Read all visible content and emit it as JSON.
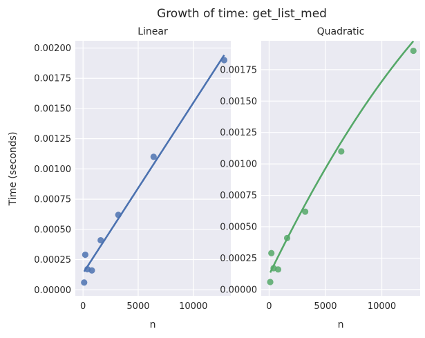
{
  "chart_data": {
    "suptitle": "Growth of time: get_list_med",
    "ylabel": "Time (seconds)",
    "panels": [
      {
        "type": "scatter",
        "title": "Linear",
        "xlabel": "n",
        "xlim": [
          -700,
          13400
        ],
        "ylim": [
          -5e-05,
          0.00206
        ],
        "xticks": [
          0,
          5000,
          10000
        ],
        "xtick_labels": [
          "0",
          "5000",
          "10000"
        ],
        "yticks": [
          0,
          0.00025,
          0.0005,
          0.00075,
          0.001,
          0.00125,
          0.0015,
          0.00175,
          0.002
        ],
        "ytick_labels": [
          "0.00000",
          "0.00025",
          "0.00050",
          "0.00075",
          "0.00100",
          "0.00125",
          "0.00150",
          "0.00175",
          "0.00200"
        ],
        "color": "#4c72b0",
        "x": [
          100,
          200,
          400,
          800,
          1600,
          3200,
          6400,
          12800
        ],
        "y": [
          6e-05,
          0.00029,
          0.00017,
          0.00016,
          0.00041,
          0.00062,
          0.0011,
          0.0019
        ],
        "fit": {
          "kind": "linear",
          "intercept": 0.000137,
          "slope": 1.41e-07
        }
      },
      {
        "type": "scatter",
        "title": "Quadratic",
        "xlabel": "n",
        "xlim": [
          -700,
          13400
        ],
        "ylim": [
          -5e-05,
          0.00198
        ],
        "xticks": [
          0,
          5000,
          10000
        ],
        "xtick_labels": [
          "0",
          "5000",
          "10000"
        ],
        "yticks": [
          0,
          0.00025,
          0.0005,
          0.00075,
          0.001,
          0.00125,
          0.0015,
          0.00175
        ],
        "ytick_labels": [
          "0.00000",
          "0.00025",
          "0.00050",
          "0.00075",
          "0.00100",
          "0.00125",
          "0.00150",
          "0.00175"
        ],
        "color": "#55a868",
        "x": [
          100,
          200,
          400,
          800,
          1600,
          3200,
          6400,
          12800
        ],
        "y": [
          6e-05,
          0.00029,
          0.00017,
          0.00016,
          0.00041,
          0.00062,
          0.0011,
          0.0019
        ],
        "fit": {
          "kind": "quadratic",
          "a": -3.1e-12,
          "b": 1.85e-07,
          "c": 0.000117
        }
      }
    ]
  }
}
